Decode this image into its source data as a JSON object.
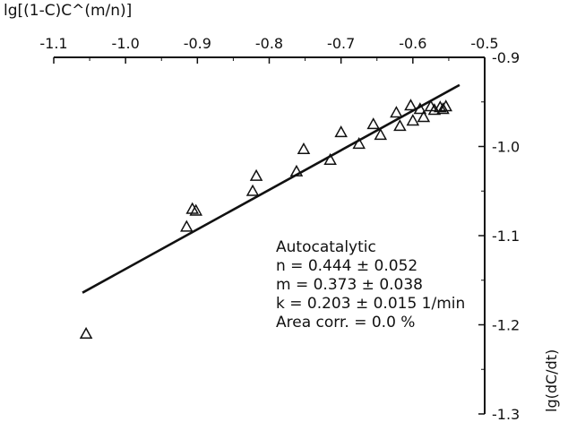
{
  "chart_data": {
    "type": "scatter",
    "xlabel": "lg[(1-C)C^(m/n)]",
    "ylabel": "lg(dC/dt)",
    "xlim": [
      -1.1,
      -0.5
    ],
    "ylim": [
      -1.3,
      -0.9
    ],
    "x_axis_position": "top",
    "y_axis_position": "right",
    "x_ticks": [
      -1.1,
      -1.0,
      -0.9,
      -0.8,
      -0.7,
      -0.6,
      -0.5
    ],
    "x_tick_labels": [
      "-1.1",
      "-1.0",
      "-0.9",
      "-0.8",
      "-0.7",
      "-0.6",
      "-0.5"
    ],
    "y_ticks": [
      -0.9,
      -1.0,
      -1.1,
      -1.2,
      -1.3
    ],
    "y_tick_labels": [
      "-0.9",
      "-1.0",
      "-1.1",
      "-1.2",
      "-1.3"
    ],
    "grid": false,
    "marker": "open-triangle",
    "points": [
      {
        "x": -1.055,
        "y": -1.21
      },
      {
        "x": -0.915,
        "y": -1.09
      },
      {
        "x": -0.907,
        "y": -1.07
      },
      {
        "x": -0.902,
        "y": -1.072
      },
      {
        "x": -0.823,
        "y": -1.05
      },
      {
        "x": -0.818,
        "y": -1.033
      },
      {
        "x": -0.762,
        "y": -1.028
      },
      {
        "x": -0.752,
        "y": -1.003
      },
      {
        "x": -0.715,
        "y": -1.015
      },
      {
        "x": -0.7,
        "y": -0.984
      },
      {
        "x": -0.675,
        "y": -0.997
      },
      {
        "x": -0.655,
        "y": -0.975
      },
      {
        "x": -0.645,
        "y": -0.987
      },
      {
        "x": -0.623,
        "y": -0.962
      },
      {
        "x": -0.618,
        "y": -0.977
      },
      {
        "x": -0.603,
        "y": -0.954
      },
      {
        "x": -0.6,
        "y": -0.971
      },
      {
        "x": -0.59,
        "y": -0.958
      },
      {
        "x": -0.585,
        "y": -0.967
      },
      {
        "x": -0.575,
        "y": -0.955
      },
      {
        "x": -0.57,
        "y": -0.959
      },
      {
        "x": -0.562,
        "y": -0.956
      },
      {
        "x": -0.558,
        "y": -0.958
      },
      {
        "x": -0.554,
        "y": -0.955
      }
    ],
    "fit_line": {
      "x": [
        -1.06,
        -0.535
      ],
      "y": [
        -1.164,
        -0.931
      ]
    },
    "annotations": [
      "Autocatalytic",
      "n = 0.444 ± 0.052",
      "m = 0.373 ± 0.038",
      "k = 0.203 ± 0.015 1/min",
      "Area corr. = 0.0 %"
    ]
  }
}
